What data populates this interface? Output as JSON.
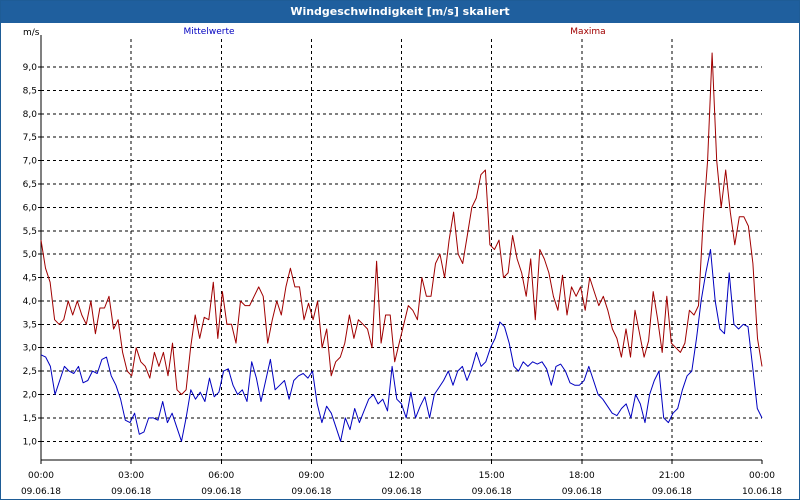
{
  "window": {
    "title": "Windgeschwindigkeit [m/s] skaliert"
  },
  "chart_data": {
    "type": "line",
    "title": "Windgeschwindigkeit [m/s] skaliert",
    "ylabel": "m/s",
    "xlabel": "",
    "ylim": [
      0.6,
      9.6
    ],
    "xlim_hours": [
      0,
      24
    ],
    "grid": true,
    "legend": "top",
    "yticks": [
      "1,0",
      "1,5",
      "2,0",
      "2,5",
      "3,0",
      "3,5",
      "4,0",
      "4,5",
      "5,0",
      "5,5",
      "6,0",
      "6,5",
      "7,0",
      "7,5",
      "8,0",
      "8,5",
      "9,0"
    ],
    "xticks": [
      {
        "time": "00:00",
        "date": "09.06.18"
      },
      {
        "time": "03:00",
        "date": "09.06.18"
      },
      {
        "time": "06:00",
        "date": "09.06.18"
      },
      {
        "time": "09:00",
        "date": "09.06.18"
      },
      {
        "time": "12:00",
        "date": "09.06.18"
      },
      {
        "time": "15:00",
        "date": "09.06.18"
      },
      {
        "time": "18:00",
        "date": "09.06.18"
      },
      {
        "time": "21:00",
        "date": "09.06.18"
      },
      {
        "time": "00:00",
        "date": "10.06.18"
      }
    ],
    "series": [
      {
        "name": "Mittelwerte",
        "color": "#0000c0",
        "sample_interval_hours": 0.1667,
        "values": [
          2.85,
          2.8,
          2.6,
          2.0,
          2.3,
          2.6,
          2.5,
          2.45,
          2.6,
          2.25,
          2.3,
          2.5,
          2.45,
          2.75,
          2.8,
          2.4,
          2.2,
          1.9,
          1.45,
          1.4,
          1.6,
          1.15,
          1.2,
          1.5,
          1.5,
          1.45,
          1.85,
          1.4,
          1.6,
          1.3,
          1.0,
          1.5,
          2.1,
          1.9,
          2.05,
          1.85,
          2.35,
          1.95,
          2.05,
          2.5,
          2.55,
          2.2,
          2.0,
          2.1,
          1.85,
          2.7,
          2.35,
          1.85,
          2.3,
          2.75,
          2.1,
          2.2,
          2.3,
          1.9,
          2.3,
          2.4,
          2.45,
          2.35,
          2.5,
          1.8,
          1.4,
          1.75,
          1.6,
          1.3,
          1.0,
          1.5,
          1.25,
          1.7,
          1.4,
          1.65,
          1.9,
          2.0,
          1.8,
          1.9,
          1.65,
          2.6,
          1.9,
          1.8,
          1.5,
          2.05,
          1.5,
          1.75,
          1.95,
          1.5,
          2.0,
          2.15,
          2.3,
          2.5,
          2.2,
          2.5,
          2.6,
          2.3,
          2.55,
          2.9,
          2.6,
          2.7,
          3.0,
          3.2,
          3.55,
          3.45,
          3.1,
          2.6,
          2.5,
          2.7,
          2.6,
          2.7,
          2.65,
          2.7,
          2.55,
          2.2,
          2.6,
          2.65,
          2.5,
          2.25,
          2.2,
          2.2,
          2.3,
          2.6,
          2.3,
          2.0,
          1.9,
          1.75,
          1.6,
          1.55,
          1.7,
          1.8,
          1.5,
          2.0,
          1.8,
          1.4,
          2.0,
          2.3,
          2.5,
          1.5,
          1.4,
          1.6,
          1.7,
          2.1,
          2.4,
          2.5,
          3.2,
          4.0,
          4.6,
          5.1,
          4.0,
          3.4,
          3.3,
          4.6,
          3.5,
          3.4,
          3.5,
          3.45,
          2.6,
          1.7,
          1.5
        ]
      },
      {
        "name": "Maxima",
        "color": "#a00000",
        "sample_interval_hours": 0.1667,
        "values": [
          5.3,
          4.7,
          4.4,
          3.6,
          3.5,
          3.6,
          4.0,
          3.7,
          4.0,
          3.7,
          3.5,
          4.0,
          3.3,
          3.85,
          3.85,
          4.1,
          3.4,
          3.6,
          2.9,
          2.5,
          2.4,
          3.0,
          2.7,
          2.6,
          2.35,
          2.9,
          2.6,
          2.9,
          2.4,
          3.1,
          2.1,
          2.0,
          2.1,
          3.0,
          3.7,
          3.2,
          3.65,
          3.6,
          4.4,
          3.2,
          4.2,
          3.5,
          3.5,
          3.1,
          4.0,
          3.9,
          3.9,
          4.1,
          4.3,
          4.1,
          3.1,
          3.6,
          4.0,
          3.7,
          4.3,
          4.7,
          4.3,
          4.3,
          3.6,
          3.95,
          3.6,
          4.0,
          3.0,
          3.4,
          2.4,
          2.7,
          2.8,
          3.1,
          3.7,
          3.2,
          3.6,
          3.5,
          3.4,
          3.0,
          4.85,
          3.1,
          3.7,
          3.7,
          2.7,
          3.1,
          3.5,
          3.9,
          3.8,
          3.6,
          4.5,
          4.1,
          4.1,
          4.8,
          5.0,
          4.5,
          5.3,
          5.9,
          5.0,
          4.8,
          5.4,
          6.0,
          6.2,
          6.7,
          6.8,
          5.2,
          5.1,
          5.3,
          4.5,
          4.6,
          5.4,
          4.9,
          4.6,
          4.1,
          4.9,
          3.6,
          5.1,
          4.9,
          4.6,
          4.1,
          3.8,
          4.55,
          3.7,
          4.3,
          4.1,
          4.3,
          3.8,
          4.5,
          4.2,
          3.9,
          4.1,
          3.8,
          3.4,
          3.2,
          2.8,
          3.4,
          2.8,
          3.8,
          3.3,
          2.8,
          3.15,
          4.2,
          3.6,
          2.9,
          4.1,
          3.1,
          3.0,
          2.9,
          3.1,
          3.8,
          3.7,
          3.9,
          5.7,
          7.0,
          9.3,
          7.0,
          6.0,
          6.8,
          5.9,
          5.2,
          5.8,
          5.8,
          5.6,
          4.8,
          3.2,
          2.6
        ]
      }
    ]
  }
}
